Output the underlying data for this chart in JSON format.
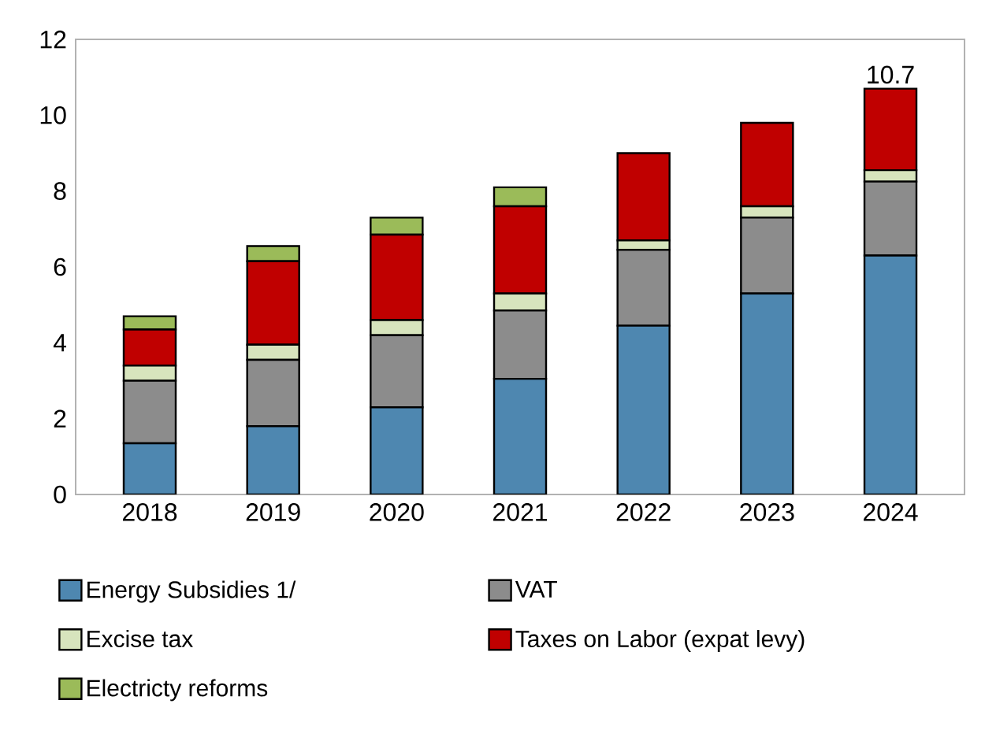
{
  "chart_data": {
    "type": "bar",
    "stacked": true,
    "categories": [
      "2018",
      "2019",
      "2020",
      "2021",
      "2022",
      "2023",
      "2024"
    ],
    "series": [
      {
        "name": "Energy Subsidies 1/",
        "color": "#4e87b0",
        "values": [
          1.35,
          1.8,
          2.3,
          3.05,
          4.45,
          5.3,
          6.3
        ]
      },
      {
        "name": "VAT",
        "color": "#8c8c8c",
        "values": [
          1.65,
          1.75,
          1.9,
          1.8,
          2.0,
          2.0,
          1.95
        ]
      },
      {
        "name": "Excise tax",
        "color": "#d7e4bd",
        "values": [
          0.4,
          0.4,
          0.4,
          0.45,
          0.25,
          0.3,
          0.3
        ]
      },
      {
        "name": "Taxes on Labor (expat levy)",
        "color": "#c00000",
        "values": [
          0.95,
          2.2,
          2.25,
          2.3,
          2.3,
          2.2,
          2.15
        ]
      },
      {
        "name": "Electricty reforms",
        "color": "#9bbb59",
        "values": [
          0.35,
          0.4,
          0.45,
          0.5,
          null,
          null,
          null
        ]
      }
    ],
    "ylim": [
      0,
      12
    ],
    "yticks": [
      0,
      2,
      4,
      6,
      8,
      10,
      12
    ],
    "legend": "bottom",
    "annotations": [
      {
        "text": "10.7",
        "x": "2024",
        "y": 10.7
      }
    ]
  }
}
